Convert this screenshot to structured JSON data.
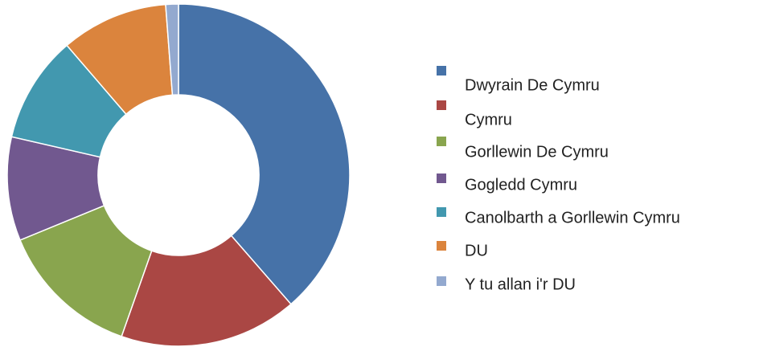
{
  "chart_data": {
    "type": "donut",
    "categories": [
      "Dwyrain De Cymru",
      "Cymru",
      "Gorllewin De Cymru",
      "Gogledd Cymru",
      "Canolbarth a Gorllewin Cymru",
      "DU",
      "Y tu allan i'r DU"
    ],
    "values": [
      38.6,
      16.8,
      13.4,
      9.8,
      10.1,
      10.1,
      1.2
    ],
    "colors": [
      "#4672a8",
      "#aa4744",
      "#89a54e",
      "#71588f",
      "#4298af",
      "#db843d",
      "#93a9cf"
    ],
    "legend": "right"
  }
}
